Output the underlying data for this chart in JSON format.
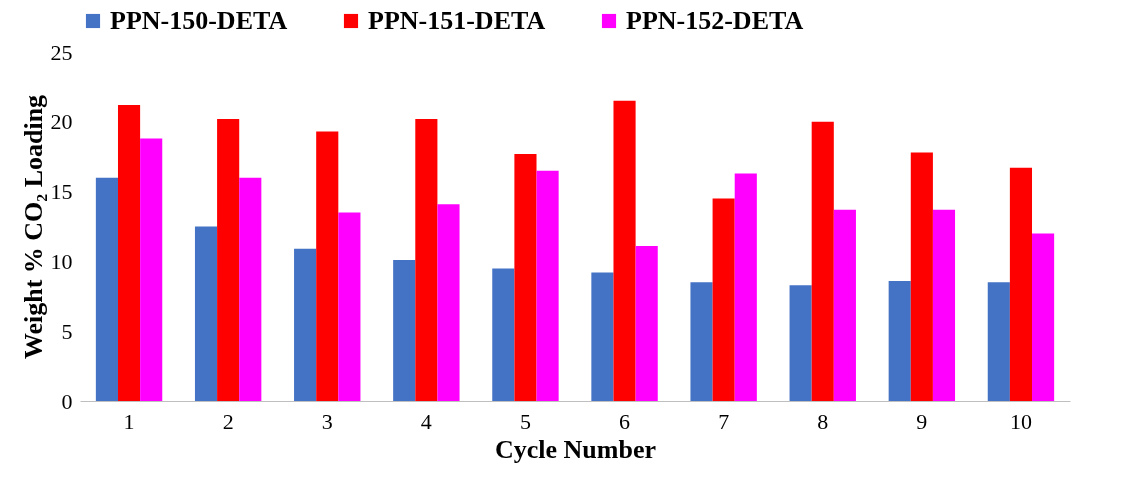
{
  "chart_data": {
    "type": "bar",
    "xlabel": "Cycle Number",
    "ylabel": "Weight % CO₂ Loading",
    "categories": [
      "1",
      "2",
      "3",
      "4",
      "5",
      "6",
      "7",
      "8",
      "9",
      "10"
    ],
    "series": [
      {
        "name": "PPN-150-DETA",
        "color": "#4472c4",
        "values": [
          16.0,
          12.5,
          10.9,
          10.1,
          9.5,
          9.2,
          8.5,
          8.3,
          8.6,
          8.5
        ]
      },
      {
        "name": "PPN-151-DETA",
        "color": "#ff0000",
        "values": [
          21.2,
          20.2,
          19.3,
          20.2,
          17.7,
          21.5,
          14.5,
          20.0,
          17.8,
          16.7
        ]
      },
      {
        "name": "PPN-152-DETA",
        "color": "#ff00ff",
        "values": [
          18.8,
          16.0,
          13.5,
          14.1,
          16.5,
          11.1,
          16.3,
          13.7,
          13.7,
          12.0
        ]
      }
    ],
    "ylim": [
      0,
      25
    ],
    "yticks": [
      0,
      5,
      10,
      15,
      20,
      25
    ],
    "grid": false,
    "legend": "top"
  }
}
